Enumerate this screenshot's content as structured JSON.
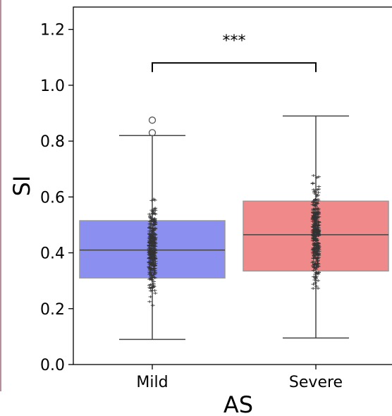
{
  "chart_data": {
    "type": "box",
    "title": "",
    "xlabel": "AS",
    "ylabel": "SI",
    "ylim": [
      0.0,
      1.28
    ],
    "yticks": [
      "0.0",
      "0.2",
      "0.4",
      "0.6",
      "0.8",
      "1.0",
      "1.2"
    ],
    "categories": [
      "Mild",
      "Severe"
    ],
    "boxes": [
      {
        "category": "Mild",
        "color": "#8a8ff0",
        "whisker_low": 0.09,
        "q1": 0.31,
        "median": 0.41,
        "q3": 0.515,
        "whisker_high": 0.82,
        "outliers": [
          0.83,
          0.875
        ]
      },
      {
        "category": "Severe",
        "color": "#f08a8a",
        "whisker_low": 0.095,
        "q1": 0.335,
        "median": 0.465,
        "q3": 0.585,
        "whisker_high": 0.89,
        "outliers": []
      }
    ],
    "significance": {
      "label": "***",
      "between": [
        "Mild",
        "Severe"
      ],
      "y": 1.08
    },
    "grid": false,
    "points_overlay": true,
    "point_color": "#333333"
  }
}
